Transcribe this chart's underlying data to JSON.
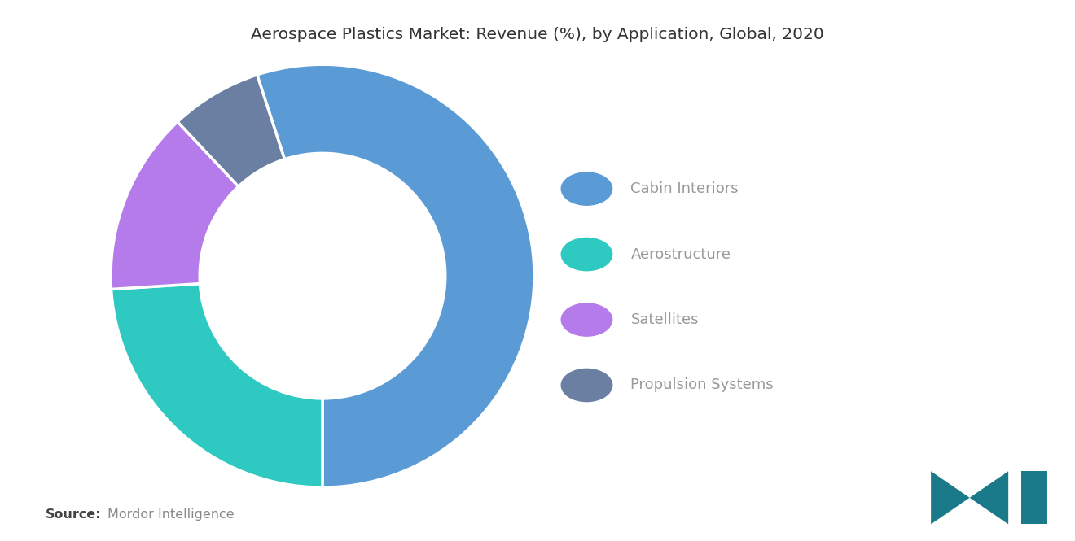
{
  "title": "Aerospace Plastics Market: Revenue (%), by Application, Global, 2020",
  "title_fontsize": 14.5,
  "title_color": "#333333",
  "segments": [
    {
      "label": "Cabin Interiors",
      "value": 55,
      "color": "#5B9BD5"
    },
    {
      "label": "Aerostructure",
      "value": 24,
      "color": "#2EC9C0"
    },
    {
      "label": "Satellites",
      "value": 14,
      "color": "#B57BEA"
    },
    {
      "label": "Propulsion Systems",
      "value": 7,
      "color": "#6B7FA3"
    }
  ],
  "legend_fontsize": 13,
  "legend_text_color": "#999999",
  "source_fontsize": 11.5,
  "background_color": "#ffffff",
  "donut_width": 0.42,
  "start_angle": 108,
  "logo_color": "#1a7a8a"
}
